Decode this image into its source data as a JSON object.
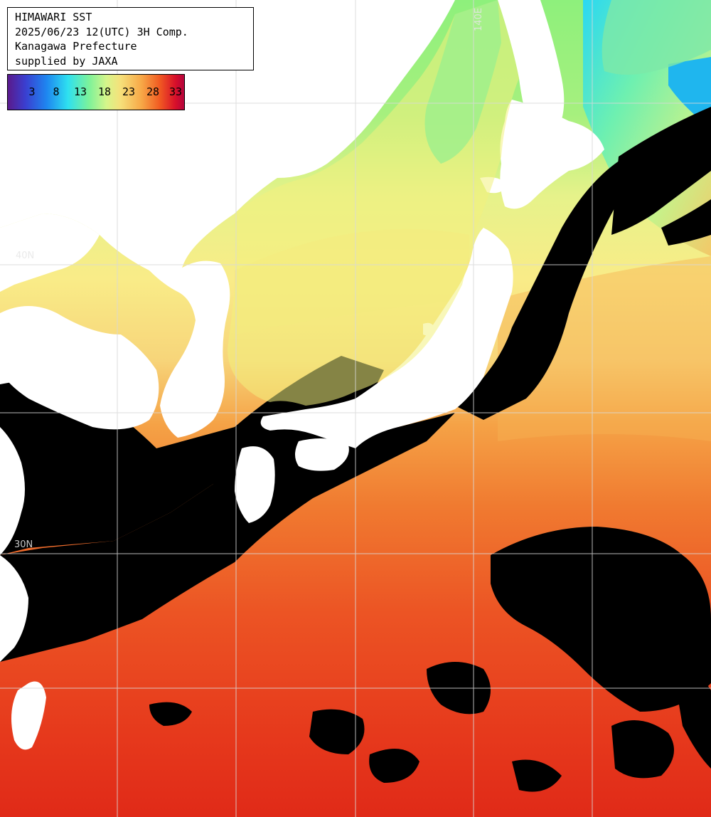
{
  "header": {
    "title": "HIMAWARI SST",
    "datetime": "2025/06/23 12(UTC) 3H Comp.",
    "region": "Kanagawa Prefecture",
    "credit": "supplied by JAXA"
  },
  "colorbar": {
    "ticks": [
      "3",
      "8",
      "13",
      "18",
      "23",
      "28",
      "33"
    ],
    "unit": ""
  },
  "grid_labels": {
    "lat_40n": "40N",
    "lat_30n": "30N",
    "lon_140e": "140E"
  },
  "colors": {
    "land": "#ffffff",
    "cloud_no_data": "#000000",
    "grid": "#cccccc",
    "cold_sea": "#32d6f0",
    "temperate_sea": "#9cf08a",
    "warm_sea": "#f6e68a",
    "subtropical_sea": "#f7a03c",
    "tropical_sea": "#e8371c"
  }
}
